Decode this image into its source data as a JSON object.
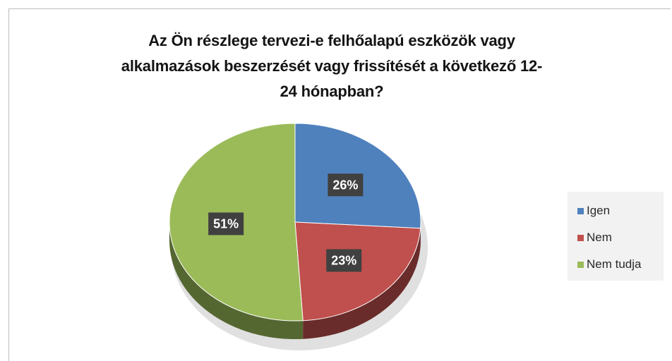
{
  "chart_data": {
    "type": "pie",
    "title_lines": [
      "Az Ön részlege tervezi-e felhőalapú eszközök vagy",
      "alkalmazások beszerzését vagy frissítését a következő 12-",
      "24 hónapban?"
    ],
    "categories": [
      "Igen",
      "Nem",
      "Nem tudja"
    ],
    "values": [
      26,
      23,
      51
    ],
    "data_labels": [
      "26%",
      "23%",
      "51%"
    ],
    "colors": [
      "#4f81bd",
      "#c0504d",
      "#9bbb59"
    ],
    "legend_position": "right",
    "style": "3d"
  }
}
